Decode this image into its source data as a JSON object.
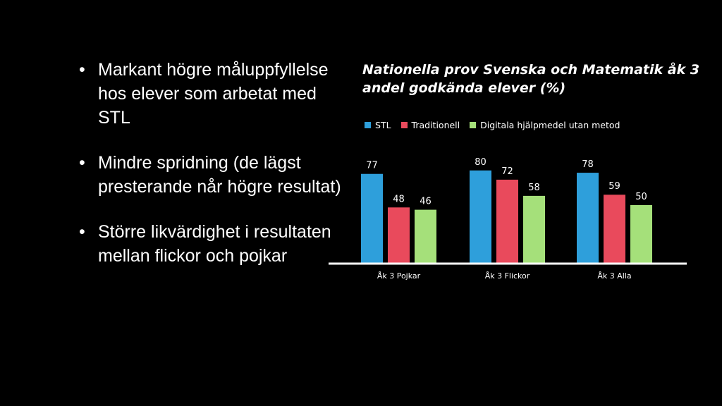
{
  "bullets": [
    "Markant högre måluppfyllelse hos elever som arbetat med STL",
    "Mindre spridning (de lägst presterande når högre resultat)",
    "Större likvärdighet i resultaten mellan flickor och pojkar"
  ],
  "chart_data": {
    "type": "bar",
    "title": "Nationella prov Svenska och Matematik åk 3 andel godkända elever (%)",
    "categories": [
      "Åk 3 Pojkar",
      "Åk 3 Flickor",
      "Åk 3 Alla"
    ],
    "series": [
      {
        "name": "STL",
        "color": "#2e9fdb",
        "values": [
          77,
          80,
          78
        ]
      },
      {
        "name": "Traditionell",
        "color": "#e94a5c",
        "values": [
          48,
          72,
          59
        ]
      },
      {
        "name": "Digitala hjälpmedel utan metod",
        "color": "#a5e07a",
        "values": [
          46,
          58,
          50
        ]
      }
    ],
    "ylim": [
      0,
      100
    ],
    "grid": false,
    "legend": "top-left",
    "data_labels": true
  }
}
